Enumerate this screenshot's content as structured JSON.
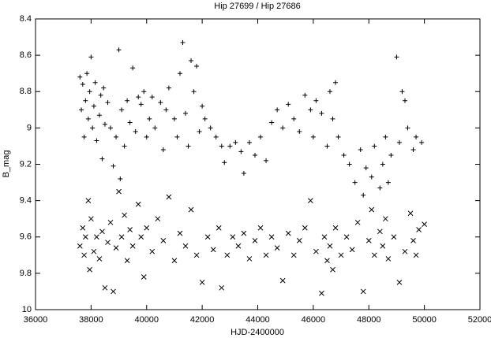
{
  "chart_data": {
    "type": "scatter",
    "title": "Hip 27699 / Hip 27686",
    "xlabel": "HJD-2400000",
    "ylabel": "B_mag",
    "xlim": [
      36000,
      52000
    ],
    "xticks": [
      36000,
      38000,
      40000,
      42000,
      44000,
      46000,
      48000,
      50000,
      52000
    ],
    "ylim": [
      8.4,
      10
    ],
    "yticks": [
      8.4,
      8.6,
      8.8,
      9,
      9.2,
      9.4,
      9.6,
      9.8,
      10
    ],
    "yreverse": true,
    "series": [
      {
        "marker": "plus",
        "color": "#000000",
        "x": [
          37600,
          37650,
          37700,
          37750,
          37800,
          37850,
          37900,
          37950,
          38000,
          38050,
          38100,
          38150,
          38200,
          38300,
          38350,
          38400,
          38450,
          38500,
          38600,
          38700,
          38800,
          38900,
          39000,
          39050,
          39100,
          39200,
          39300,
          39400,
          39500,
          39600,
          39700,
          39800,
          39900,
          40000,
          40100,
          40200,
          40300,
          40500,
          40600,
          40700,
          40800,
          41000,
          41100,
          41200,
          41300,
          41400,
          41500,
          41600,
          41700,
          41800,
          41900,
          42000,
          42100,
          42300,
          42500,
          42700,
          42800,
          43000,
          43200,
          43400,
          43500,
          43700,
          43900,
          44100,
          44300,
          44500,
          44700,
          44900,
          45100,
          45300,
          45500,
          45700,
          45900,
          46000,
          46100,
          46300,
          46500,
          46600,
          46700,
          46800,
          46900,
          47100,
          47300,
          47500,
          47700,
          47800,
          47900,
          48100,
          48200,
          48400,
          48500,
          48600,
          48700,
          48800,
          49000,
          49100,
          49200,
          49300,
          49400,
          49600,
          49700,
          49900
        ],
        "values": [
          8.72,
          8.9,
          8.76,
          9.05,
          8.85,
          8.7,
          8.95,
          8.8,
          8.61,
          9.0,
          8.88,
          8.75,
          9.07,
          8.93,
          8.82,
          9.17,
          8.78,
          8.98,
          8.86,
          9.0,
          9.21,
          9.05,
          8.57,
          9.28,
          8.9,
          9.1,
          8.85,
          8.97,
          8.67,
          9.02,
          8.83,
          8.87,
          8.8,
          9.05,
          8.95,
          8.83,
          9.0,
          8.86,
          9.12,
          8.9,
          8.78,
          8.95,
          9.05,
          8.7,
          8.53,
          8.92,
          9.1,
          8.63,
          8.8,
          8.66,
          9.02,
          8.88,
          8.95,
          9.0,
          9.05,
          9.1,
          9.19,
          9.1,
          9.08,
          9.13,
          9.25,
          9.08,
          9.15,
          9.05,
          9.18,
          8.97,
          8.9,
          9.0,
          8.87,
          8.95,
          9.02,
          8.82,
          8.9,
          9.05,
          8.85,
          8.92,
          9.1,
          8.8,
          8.95,
          8.75,
          9.05,
          9.15,
          9.2,
          9.3,
          9.12,
          9.37,
          9.22,
          9.27,
          9.1,
          9.33,
          9.2,
          9.05,
          9.3,
          9.15,
          8.61,
          9.08,
          8.8,
          8.85,
          9.0,
          9.12,
          9.05,
          9.08
        ]
      },
      {
        "marker": "cross",
        "color": "#000000",
        "x": [
          37600,
          37700,
          37750,
          37800,
          37900,
          37950,
          38000,
          38100,
          38200,
          38300,
          38400,
          38500,
          38600,
          38700,
          38800,
          38900,
          39000,
          39100,
          39200,
          39300,
          39400,
          39500,
          39700,
          39800,
          39900,
          40000,
          40200,
          40400,
          40600,
          40800,
          41000,
          41200,
          41400,
          41600,
          41800,
          42000,
          42200,
          42400,
          42600,
          42700,
          42900,
          43100,
          43300,
          43500,
          43700,
          43900,
          44100,
          44300,
          44500,
          44700,
          44900,
          45100,
          45300,
          45500,
          45700,
          45900,
          46100,
          46300,
          46400,
          46500,
          46600,
          46700,
          46800,
          47000,
          47200,
          47400,
          47600,
          47800,
          48000,
          48100,
          48200,
          48400,
          48500,
          48600,
          48700,
          48900,
          49100,
          49300,
          49500,
          49600,
          49700,
          49800,
          50000
        ],
        "values": [
          9.65,
          9.55,
          9.7,
          9.6,
          9.4,
          9.78,
          9.5,
          9.68,
          9.6,
          9.72,
          9.57,
          9.88,
          9.63,
          9.52,
          9.9,
          9.66,
          9.35,
          9.6,
          9.48,
          9.73,
          9.56,
          9.65,
          9.42,
          9.6,
          9.82,
          9.55,
          9.68,
          9.5,
          9.62,
          9.38,
          9.73,
          9.58,
          9.65,
          9.45,
          9.7,
          9.85,
          9.6,
          9.67,
          9.55,
          9.88,
          9.7,
          9.6,
          9.65,
          9.58,
          9.72,
          9.62,
          9.55,
          9.7,
          9.6,
          9.66,
          9.84,
          9.58,
          9.7,
          9.62,
          9.55,
          9.4,
          9.68,
          9.91,
          9.6,
          9.73,
          9.65,
          9.78,
          9.55,
          9.7,
          9.6,
          9.67,
          9.52,
          9.9,
          9.62,
          9.45,
          9.7,
          9.57,
          9.65,
          9.5,
          9.72,
          9.6,
          9.85,
          9.68,
          9.47,
          9.62,
          9.7,
          9.56,
          9.53
        ]
      }
    ]
  }
}
